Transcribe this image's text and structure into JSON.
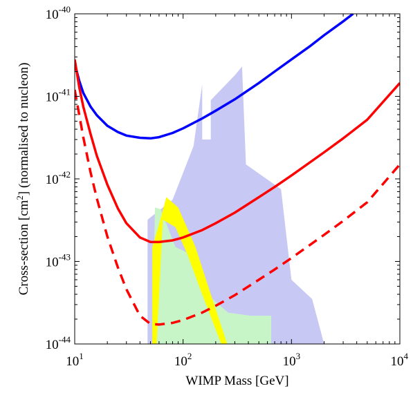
{
  "chart_data": {
    "type": "line",
    "title": "",
    "xlabel": "WIMP Mass [GeV]",
    "ylabel_parts": [
      "Cross-section [cm",
      "2",
      "] (normalised to nucleon)"
    ],
    "x_scale": "log",
    "y_scale": "log",
    "xlim": [
      10,
      10000
    ],
    "ylim": [
      1e-44,
      1e-40
    ],
    "grid": false,
    "x_ticks": [
      {
        "value": 10,
        "base": "10",
        "exp": "1"
      },
      {
        "value": 100,
        "base": "10",
        "exp": "2"
      },
      {
        "value": 1000,
        "base": "10",
        "exp": "3"
      },
      {
        "value": 10000,
        "base": "10",
        "exp": "4"
      }
    ],
    "y_ticks": [
      {
        "value": 1e-44,
        "base": "10",
        "exp": "-44"
      },
      {
        "value": 1e-43,
        "base": "10",
        "exp": "-43"
      },
      {
        "value": 1e-42,
        "base": "10",
        "exp": "-42"
      },
      {
        "value": 1e-41,
        "base": "10",
        "exp": "-41"
      },
      {
        "value": 1e-40,
        "base": "10",
        "exp": "-40"
      }
    ],
    "regions": [
      {
        "color": "#c8c8f4",
        "points": [
          [
            47,
            1.2e-44
          ],
          [
            47,
            3.2e-43
          ],
          [
            80,
            5.6e-43
          ],
          [
            125,
            2.5e-42
          ],
          [
            150,
            1.4e-41
          ],
          [
            150,
            3e-42
          ],
          [
            180,
            3e-42
          ],
          [
            180,
            9e-42
          ],
          [
            300,
            1.8e-41
          ],
          [
            350,
            2.3e-41
          ],
          [
            380,
            1.5e-42
          ],
          [
            800,
            7.5e-43
          ],
          [
            1000,
            6e-44
          ],
          [
            1550,
            3.5e-44
          ],
          [
            2000,
            1e-44
          ],
          [
            47,
            1e-44
          ]
        ]
      },
      {
        "color": "#c8f5c8",
        "points": [
          [
            55,
            4.5e-43
          ],
          [
            62,
            4.3e-43
          ],
          [
            85,
            1.5e-43
          ],
          [
            120,
            1.2e-43
          ],
          [
            150,
            4.5e-44
          ],
          [
            260,
            2.4e-44
          ],
          [
            420,
            2.2e-44
          ],
          [
            650,
            2.2e-44
          ],
          [
            650,
            1e-44
          ],
          [
            52,
            1e-44
          ]
        ]
      },
      {
        "color": "#ffff00",
        "points": [
          [
            52,
            1e-44
          ],
          [
            52,
            1.5e-43
          ],
          [
            60,
            2.8e-43
          ],
          [
            70,
            6e-43
          ],
          [
            90,
            4.5e-43
          ],
          [
            130,
            1.5e-43
          ],
          [
            180,
            4e-44
          ],
          [
            255,
            1e-44
          ],
          [
            225,
            1e-44
          ],
          [
            150,
            4e-44
          ],
          [
            110,
            1.2e-43
          ],
          [
            85,
            2.6e-43
          ],
          [
            65,
            3.2e-43
          ],
          [
            57,
            1e-44
          ]
        ]
      }
    ],
    "series": [
      {
        "color": "#0000ff",
        "dash": "solid",
        "points": [
          [
            10,
            2.5e-41
          ],
          [
            11,
            1.55e-41
          ],
          [
            12,
            1.1e-41
          ],
          [
            14,
            7.5e-42
          ],
          [
            16,
            5.9e-42
          ],
          [
            20,
            4.4e-42
          ],
          [
            25,
            3.7e-42
          ],
          [
            30,
            3.35e-42
          ],
          [
            40,
            3.15e-42
          ],
          [
            50,
            3.1e-42
          ],
          [
            60,
            3.2e-42
          ],
          [
            80,
            3.6e-42
          ],
          [
            100,
            4.1e-42
          ],
          [
            150,
            5.4e-42
          ],
          [
            200,
            6.7e-42
          ],
          [
            300,
            9.2e-42
          ],
          [
            500,
            1.45e-41
          ],
          [
            700,
            2e-41
          ],
          [
            1000,
            2.8e-41
          ],
          [
            1500,
            4.1e-41
          ],
          [
            2000,
            5.5e-41
          ],
          [
            3000,
            8.1e-41
          ],
          [
            3700,
            1e-40
          ]
        ]
      },
      {
        "color": "#ff0000",
        "dash": "solid",
        "points": [
          [
            10,
            2.8e-41
          ],
          [
            11,
            1.3e-41
          ],
          [
            12,
            7.5e-42
          ],
          [
            14,
            3.5e-42
          ],
          [
            16,
            1.9e-42
          ],
          [
            20,
            8.5e-43
          ],
          [
            25,
            4.4e-43
          ],
          [
            30,
            2.9e-43
          ],
          [
            40,
            1.95e-43
          ],
          [
            50,
            1.72e-43
          ],
          [
            60,
            1.72e-43
          ],
          [
            80,
            1.8e-43
          ],
          [
            100,
            1.95e-43
          ],
          [
            150,
            2.4e-43
          ],
          [
            200,
            2.9e-43
          ],
          [
            300,
            3.9e-43
          ],
          [
            500,
            6e-43
          ],
          [
            700,
            8e-43
          ],
          [
            1000,
            1.1e-42
          ],
          [
            2000,
            2.1e-42
          ],
          [
            3000,
            3.1e-42
          ],
          [
            5000,
            5.2e-42
          ],
          [
            10000,
            1.45e-41
          ]
        ]
      },
      {
        "color": "#ff0000",
        "dash": "dashed",
        "points": [
          [
            10,
            1.2e-41
          ],
          [
            11,
            6e-42
          ],
          [
            12,
            3.2e-42
          ],
          [
            14,
            1.2e-42
          ],
          [
            16,
            5.8e-43
          ],
          [
            20,
            2e-43
          ],
          [
            25,
            8.5e-44
          ],
          [
            30,
            4.6e-44
          ],
          [
            40,
            2.2e-44
          ],
          [
            50,
            1.75e-44
          ],
          [
            60,
            1.72e-44
          ],
          [
            80,
            1.8e-44
          ],
          [
            100,
            1.95e-44
          ],
          [
            150,
            2.4e-44
          ],
          [
            200,
            2.9e-44
          ],
          [
            300,
            3.9e-44
          ],
          [
            500,
            6e-44
          ],
          [
            700,
            8e-44
          ],
          [
            1000,
            1.1e-43
          ],
          [
            2000,
            2.1e-43
          ],
          [
            3000,
            3.1e-43
          ],
          [
            5000,
            5.2e-43
          ],
          [
            10000,
            1.5e-42
          ]
        ]
      }
    ]
  }
}
